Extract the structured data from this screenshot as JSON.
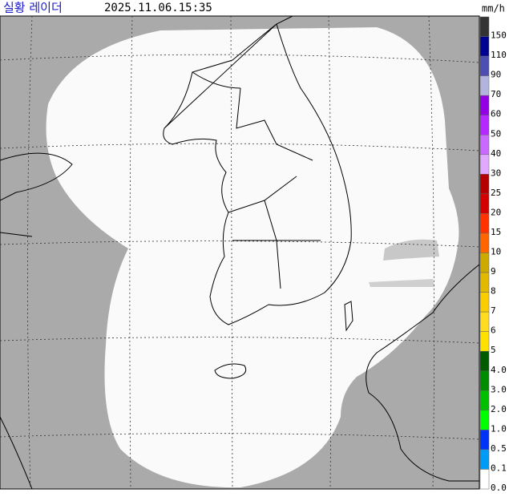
{
  "header": {
    "title": "실황 레이더",
    "timestamp": "2025.11.06.15:35"
  },
  "legend": {
    "unit": "mm/h",
    "items": [
      {
        "label": "150",
        "color": "#333333"
      },
      {
        "label": "110",
        "color": "#000390"
      },
      {
        "label": "90",
        "color": "#4c4eb1"
      },
      {
        "label": "70",
        "color": "#b3b4de"
      },
      {
        "label": "60",
        "color": "#9300e4"
      },
      {
        "label": "50",
        "color": "#b329ff"
      },
      {
        "label": "40",
        "color": "#c969ff"
      },
      {
        "label": "30",
        "color": "#e0a9ff"
      },
      {
        "label": "25",
        "color": "#b40000"
      },
      {
        "label": "20",
        "color": "#d20000"
      },
      {
        "label": "15",
        "color": "#ff3200"
      },
      {
        "label": "10",
        "color": "#ff6600"
      },
      {
        "label": "9",
        "color": "#ccaa00"
      },
      {
        "label": "8",
        "color": "#e0b900"
      },
      {
        "label": "7",
        "color": "#f9cd00"
      },
      {
        "label": "6",
        "color": "#ffdc1f"
      },
      {
        "label": "5",
        "color": "#ffe100"
      },
      {
        "label": "4.0",
        "color": "#005a00"
      },
      {
        "label": "3.0",
        "color": "#008c00"
      },
      {
        "label": "2.0",
        "color": "#00be00"
      },
      {
        "label": "1.0",
        "color": "#00ff00"
      },
      {
        "label": "0.5",
        "color": "#0033f5"
      },
      {
        "label": "0.1",
        "color": "#009bf5"
      },
      {
        "label": "0.0",
        "color": "#ffffff"
      }
    ]
  }
}
